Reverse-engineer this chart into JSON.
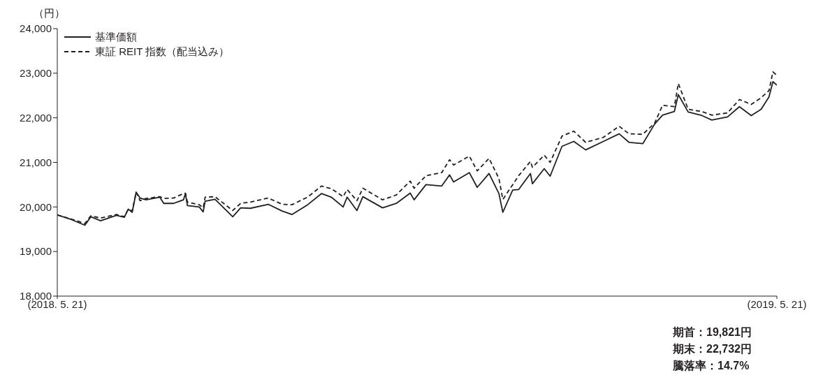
{
  "chart_data": {
    "type": "line",
    "ylabel": "（円）",
    "x": [
      "2018-05-21",
      "2018-05-28",
      "2018-06-04",
      "2018-06-07",
      "2018-06-12",
      "2018-06-20",
      "2018-06-24",
      "2018-06-26",
      "2018-06-28",
      "2018-06-30",
      "2018-07-02",
      "2018-07-05",
      "2018-07-12",
      "2018-07-14",
      "2018-07-19",
      "2018-07-24",
      "2018-07-25",
      "2018-07-26",
      "2018-08-01",
      "2018-08-03",
      "2018-08-04",
      "2018-08-09",
      "2018-08-18",
      "2018-08-22",
      "2018-08-27",
      "2018-09-05",
      "2018-09-12",
      "2018-09-17",
      "2018-09-25",
      "2018-10-02",
      "2018-10-07",
      "2018-10-13",
      "2018-10-15",
      "2018-10-20",
      "2018-10-23",
      "2018-11-02",
      "2018-11-09",
      "2018-11-16",
      "2018-11-18",
      "2018-11-24",
      "2018-12-02",
      "2018-12-06",
      "2018-12-08",
      "2018-12-16",
      "2018-12-20",
      "2018-12-26",
      "2018-12-31",
      "2019-01-02",
      "2019-01-07",
      "2019-01-10",
      "2019-01-16",
      "2019-01-17",
      "2019-01-23",
      "2019-01-26",
      "2019-02-01",
      "2019-02-07",
      "2019-02-13",
      "2019-02-22",
      "2019-03-02",
      "2019-03-07",
      "2019-03-14",
      "2019-03-20",
      "2019-03-24",
      "2019-03-30",
      "2019-04-01",
      "2019-04-06",
      "2019-04-13",
      "2019-04-18",
      "2019-04-26",
      "2019-05-02",
      "2019-05-08",
      "2019-05-13",
      "2019-05-17",
      "2019-05-19",
      "2019-05-21"
    ],
    "series": [
      {
        "name": "基準価額",
        "color": "#231f20",
        "line_style": "solid",
        "values": [
          19821,
          19720,
          19590,
          19780,
          19690,
          19810,
          19770,
          19950,
          19880,
          20330,
          20200,
          20160,
          20220,
          20080,
          20080,
          20160,
          20300,
          20030,
          20000,
          19890,
          20130,
          20170,
          19780,
          19980,
          19970,
          20060,
          19910,
          19830,
          20050,
          20300,
          20220,
          20000,
          20220,
          19920,
          20230,
          19980,
          20080,
          20310,
          20160,
          20500,
          20470,
          20720,
          20560,
          20770,
          20440,
          20750,
          20300,
          19880,
          20380,
          20390,
          20750,
          20520,
          20860,
          20690,
          21360,
          21470,
          21280,
          21470,
          21640,
          21450,
          21420,
          21860,
          22060,
          22140,
          22520,
          22130,
          22050,
          21950,
          22020,
          22250,
          22050,
          22190,
          22470,
          22810,
          22732
        ]
      },
      {
        "name": "東証 REIT 指数（配当込み）",
        "color": "#231f20",
        "line_style": "dashed",
        "values": [
          19821,
          19730,
          19630,
          19800,
          19750,
          19830,
          19780,
          19950,
          19910,
          20330,
          20140,
          20190,
          20230,
          20190,
          20200,
          20300,
          20310,
          20110,
          20050,
          19980,
          20220,
          20230,
          19920,
          20080,
          20110,
          20200,
          20060,
          20050,
          20220,
          20470,
          20410,
          20230,
          20390,
          20140,
          20420,
          20160,
          20270,
          20580,
          20420,
          20700,
          20770,
          21060,
          20940,
          21140,
          20810,
          21090,
          20640,
          20170,
          20500,
          20700,
          21020,
          20890,
          21160,
          21000,
          21590,
          21700,
          21450,
          21560,
          21810,
          21640,
          21630,
          21880,
          22280,
          22250,
          22770,
          22190,
          22140,
          22060,
          22110,
          22410,
          22300,
          22450,
          22610,
          23030,
          22950
        ]
      }
    ],
    "ylim": [
      18000,
      24000
    ],
    "yticks": [
      {
        "value": 18000,
        "label": "18,000"
      },
      {
        "value": 19000,
        "label": "19,000"
      },
      {
        "value": 20000,
        "label": "20,000"
      },
      {
        "value": 21000,
        "label": "21,000"
      },
      {
        "value": 22000,
        "label": "22,000"
      },
      {
        "value": 23000,
        "label": "23,000"
      },
      {
        "value": 24000,
        "label": "24,000"
      }
    ],
    "xlim": [
      "2018-05-21",
      "2019-05-21"
    ],
    "xticks": [
      {
        "value": "2018-05-21",
        "label": "(2018. 5. 21)"
      },
      {
        "value": "2019-05-21",
        "label": "(2019. 5. 21)"
      }
    ],
    "grid": false,
    "legend": "top left",
    "marker": "none",
    "annotations": [
      "期首：19,821円",
      "期末：22,732円",
      "騰落率：14.7%"
    ]
  }
}
